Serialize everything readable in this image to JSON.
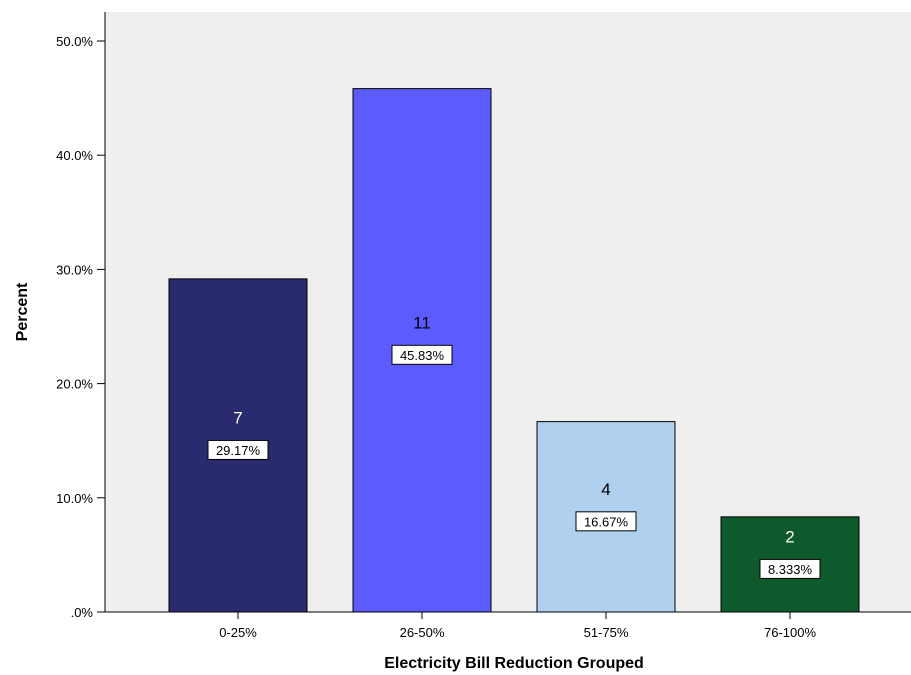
{
  "chart_data": {
    "type": "bar",
    "title": "",
    "xlabel": "Electricity Bill Reduction Grouped",
    "ylabel": "Percent",
    "ylim": [
      0,
      50
    ],
    "yticks": [
      {
        "value": 0,
        "label": ".0%"
      },
      {
        "value": 10,
        "label": "10.0%"
      },
      {
        "value": 20,
        "label": "20.0%"
      },
      {
        "value": 30,
        "label": "30.0%"
      },
      {
        "value": 40,
        "label": "40.0%"
      },
      {
        "value": 50,
        "label": "50.0%"
      }
    ],
    "categories": [
      "0-25%",
      "26-50%",
      "51-75%",
      "76-100%"
    ],
    "values": [
      29.17,
      45.83,
      16.67,
      8.333
    ],
    "counts": [
      7,
      11,
      4,
      2
    ],
    "percent_labels": [
      "29.17%",
      "45.83%",
      "16.67%",
      "8.333%"
    ],
    "colors": [
      "#2a2a6e",
      "#5b5bff",
      "#afd0ee",
      "#0f5a2c"
    ],
    "count_label_colors": [
      "#ffffff",
      "#000000",
      "#000000",
      "#ffffff"
    ],
    "plot_background": "#efefef",
    "grid": false
  }
}
